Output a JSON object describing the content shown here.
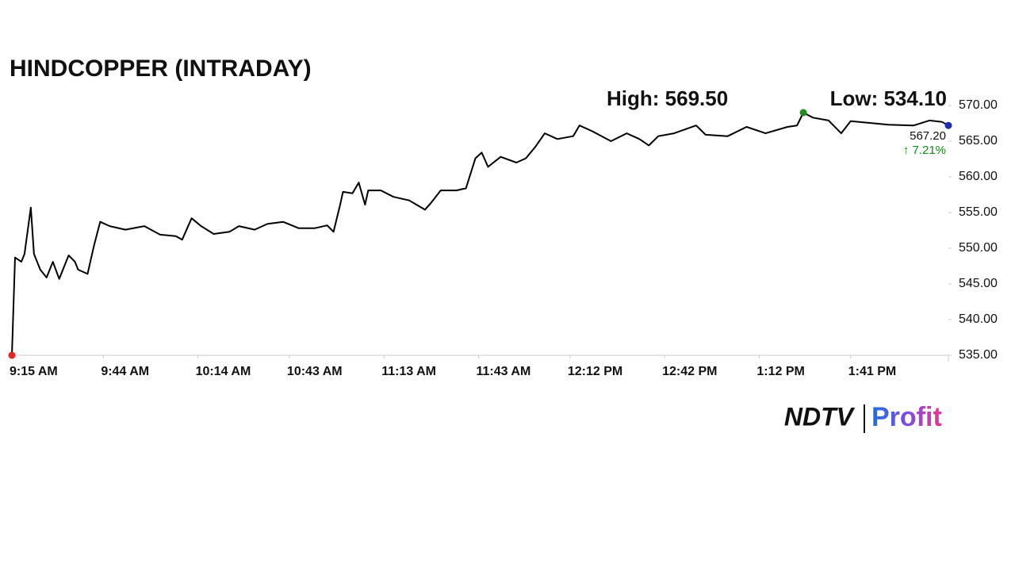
{
  "chart_data": {
    "type": "line",
    "title": "HINDCOPPER (INTRADAY)",
    "color": "#000000",
    "x": [
      "9:15 AM",
      "9:16 AM",
      "9:18 AM",
      "9:19 AM",
      "9:21 AM",
      "9:22 AM",
      "9:24 AM",
      "9:26 AM",
      "9:28 AM",
      "9:30 AM",
      "9:33 AM",
      "9:35 AM",
      "9:36 AM",
      "9:39 AM",
      "9:41 AM",
      "9:43 AM",
      "9:46 AM",
      "9:51 AM",
      "9:57 AM",
      "10:02 AM",
      "10:07 AM",
      "10:09 AM",
      "10:12 AM",
      "10:15 AM",
      "10:19 AM",
      "10:24 AM",
      "10:27 AM",
      "10:32 AM",
      "10:36 AM",
      "10:41 AM",
      "10:46 AM",
      "10:51 AM",
      "10:55 AM",
      "10:57 AM",
      "10:59 AM",
      "11:00 AM",
      "11:03 AM",
      "11:05 AM",
      "11:07 AM",
      "11:08 AM",
      "11:12 AM",
      "11:16 AM",
      "11:21 AM",
      "11:26 AM",
      "11:28 AM",
      "11:31 AM",
      "11:36 AM",
      "11:39 AM",
      "11:40 AM",
      "11:42 AM",
      "11:44 AM",
      "11:46 AM",
      "11:50 AM",
      "11:55 AM",
      "11:58 AM",
      "12:01 PM",
      "12:04 PM",
      "12:08 PM",
      "12:13 PM",
      "12:15 PM",
      "12:19 PM",
      "12:25 PM",
      "12:30 PM",
      "12:34 PM",
      "12:37 PM",
      "12:40 PM",
      "12:45 PM",
      "12:52 PM",
      "12:55 PM",
      "1:02 PM",
      "1:08 PM",
      "1:14 PM",
      "1:21 PM",
      "1:24 PM",
      "1:26 PM",
      "1:29 PM",
      "1:34 PM",
      "1:38 PM",
      "1:41 PM",
      "1:46 PM",
      "1:53 PM",
      "2:01 PM",
      "2:06 PM",
      "2:10 PM",
      "2:12 PM"
    ],
    "values": [
      535.0,
      548.7,
      548.1,
      549.2,
      555.7,
      549.2,
      547.0,
      545.9,
      548.1,
      545.7,
      549.0,
      548.1,
      547.0,
      546.4,
      550.3,
      553.7,
      553.1,
      552.6,
      553.1,
      551.9,
      551.7,
      551.2,
      554.2,
      553.1,
      552.0,
      552.3,
      553.1,
      552.6,
      553.4,
      553.7,
      552.8,
      552.8,
      553.2,
      552.3,
      555.9,
      557.9,
      557.7,
      559.2,
      556.1,
      558.1,
      558.1,
      557.2,
      556.7,
      555.4,
      556.4,
      558.1,
      558.1,
      558.4,
      559.8,
      562.6,
      563.4,
      561.4,
      562.8,
      562.0,
      562.6,
      564.2,
      566.1,
      565.3,
      565.7,
      567.2,
      566.4,
      565.0,
      566.1,
      565.3,
      564.4,
      565.7,
      566.1,
      567.2,
      565.9,
      565.7,
      567.0,
      566.1,
      567.0,
      567.2,
      569.0,
      568.3,
      567.9,
      566.1,
      567.8,
      567.6,
      567.3,
      567.2,
      567.9,
      567.7,
      567.2
    ],
    "xlim": [
      "9:15 AM",
      "2:12 PM"
    ],
    "xticks": [
      "9:15 AM",
      "9:44 AM",
      "10:14 AM",
      "10:43 AM",
      "11:13 AM",
      "11:43 AM",
      "12:12 PM",
      "12:42 PM",
      "1:12 PM",
      "1:41 PM"
    ],
    "ylim": [
      535,
      570
    ],
    "yticks": [
      {
        "value": 535,
        "label": "535.00"
      },
      {
        "value": 540,
        "label": "540.00"
      },
      {
        "value": 545,
        "label": "545.00"
      },
      {
        "value": 550,
        "label": "550.00"
      },
      {
        "value": 555,
        "label": "555.00"
      },
      {
        "value": 560,
        "label": "560.00"
      },
      {
        "value": 565,
        "label": "565.00"
      },
      {
        "value": 570,
        "label": "570.00"
      }
    ],
    "high_label": "High: 569.50",
    "low_label": "Low: 534.10",
    "last_label": "567.20",
    "change_label": "↑ 7.21%",
    "marker_colors": {
      "low": "#e52520",
      "high": "#1f8a1f",
      "last": "#1d2db5"
    },
    "change_color": "#168a16"
  },
  "logo": {
    "brand": "NDTV",
    "product": "Profit"
  }
}
